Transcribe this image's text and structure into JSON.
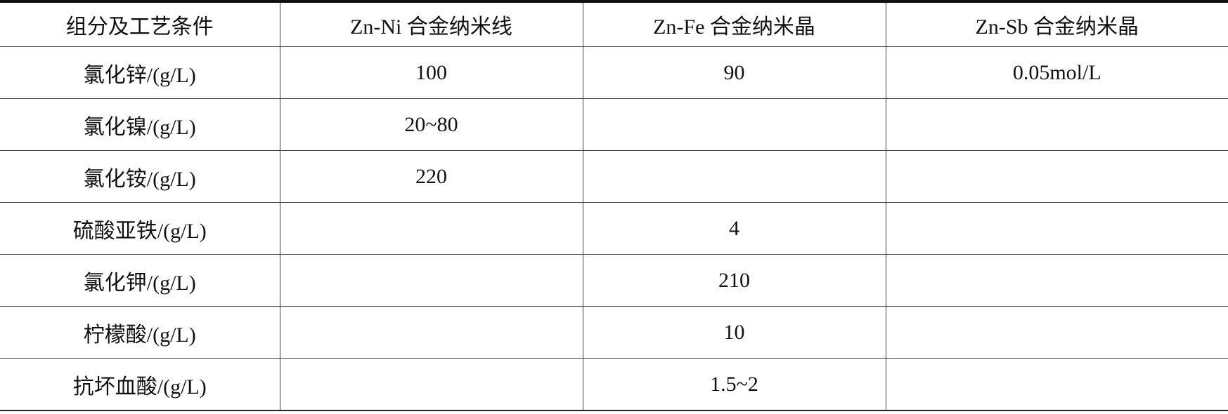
{
  "table": {
    "headers": [
      "组分及工艺条件",
      "Zn-Ni 合金纳米线",
      "Zn-Fe 合金纳米晶",
      "Zn-Sb 合金纳米晶"
    ],
    "rows": [
      [
        "氯化锌/(g/L)",
        "100",
        "90",
        "0.05mol/L"
      ],
      [
        "氯化镍/(g/L)",
        "20~80",
        "",
        ""
      ],
      [
        "氯化铵/(g/L)",
        "220",
        "",
        ""
      ],
      [
        "硫酸亚铁/(g/L)",
        "",
        "4",
        ""
      ],
      [
        "氯化钾/(g/L)",
        "",
        "210",
        ""
      ],
      [
        "柠檬酸/(g/L)",
        "",
        "10",
        ""
      ],
      [
        "抗坏血酸/(g/L)",
        "",
        "1.5~2",
        ""
      ]
    ]
  }
}
